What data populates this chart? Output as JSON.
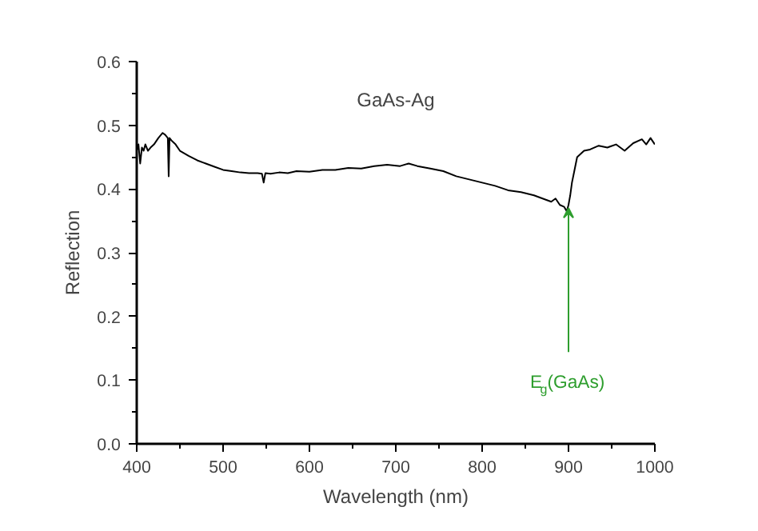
{
  "chart_data": {
    "type": "line",
    "title": "GaAs-Ag",
    "xlabel": "Wavelength (nm)",
    "ylabel": "Reflection",
    "x": [
      400,
      402,
      404,
      406,
      408,
      410,
      413,
      416,
      420,
      425,
      430,
      433,
      436,
      437,
      438,
      441,
      445,
      450,
      460,
      470,
      480,
      490,
      500,
      510,
      520,
      530,
      540,
      545,
      547,
      549,
      555,
      565,
      575,
      585,
      600,
      615,
      630,
      645,
      660,
      675,
      690,
      705,
      715,
      725,
      740,
      755,
      770,
      785,
      800,
      815,
      830,
      845,
      860,
      870,
      880,
      885,
      890,
      895,
      898,
      900,
      902,
      904,
      907,
      910,
      914,
      918,
      925,
      935,
      945,
      955,
      965,
      975,
      985,
      990,
      995,
      1000
    ],
    "series": [
      {
        "color": "#000000",
        "values": [
          0.46,
          0.47,
          0.44,
          0.465,
          0.46,
          0.47,
          0.46,
          0.465,
          0.47,
          0.48,
          0.488,
          0.485,
          0.48,
          0.42,
          0.48,
          0.475,
          0.47,
          0.46,
          0.452,
          0.445,
          0.44,
          0.435,
          0.43,
          0.428,
          0.426,
          0.425,
          0.425,
          0.424,
          0.41,
          0.425,
          0.424,
          0.426,
          0.425,
          0.428,
          0.427,
          0.43,
          0.43,
          0.433,
          0.432,
          0.436,
          0.438,
          0.436,
          0.44,
          0.436,
          0.432,
          0.428,
          0.42,
          0.415,
          0.41,
          0.405,
          0.398,
          0.395,
          0.39,
          0.385,
          0.38,
          0.385,
          0.375,
          0.372,
          0.365,
          0.375,
          0.39,
          0.41,
          0.43,
          0.45,
          0.455,
          0.46,
          0.462,
          0.468,
          0.465,
          0.47,
          0.46,
          0.472,
          0.478,
          0.47,
          0.48,
          0.47
        ]
      }
    ],
    "xlim": [
      400,
      1000
    ],
    "ylim": [
      0,
      0.6
    ],
    "xticks": [
      400,
      500,
      600,
      700,
      800,
      900,
      1000
    ],
    "yticks": [
      {
        "value": 0,
        "label": "0.0"
      },
      0.1,
      0.2,
      0.3,
      0.4,
      0.5,
      0.6
    ],
    "annotations": [
      {
        "text": "E$_{g}$(GaAs)",
        "x": 900,
        "y": 0.37
      }
    ],
    "grid": false,
    "marker": "none",
    "line_style": "solid"
  }
}
